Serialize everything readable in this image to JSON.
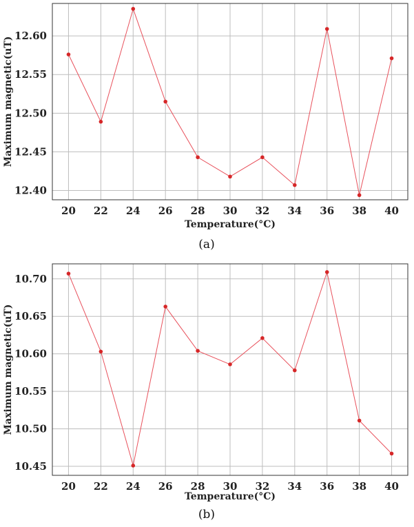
{
  "colors": {
    "line": "#e8505b",
    "marker": "#d62728",
    "grid": "#bdbdbd"
  },
  "chart_data": [
    {
      "type": "line",
      "caption": "(a)",
      "xlabel": "Temperature(°C)",
      "ylabel": "Maximum magnetic(uT)",
      "x": [
        20,
        22,
        24,
        26,
        28,
        30,
        32,
        34,
        36,
        38,
        40
      ],
      "values": [
        12.576,
        12.489,
        12.635,
        12.515,
        12.443,
        12.418,
        12.443,
        12.407,
        12.609,
        12.394,
        12.571
      ],
      "xticks": [
        "20",
        "22",
        "24",
        "26",
        "28",
        "30",
        "32",
        "34",
        "36",
        "38",
        "40"
      ],
      "yticks": [
        "12.40",
        "12.45",
        "12.50",
        "12.55",
        "12.60"
      ],
      "ytick_values": [
        12.4,
        12.45,
        12.5,
        12.55,
        12.6
      ],
      "xlim": [
        19,
        41
      ],
      "ylim": [
        12.388,
        12.642
      ],
      "grid": true
    },
    {
      "type": "line",
      "caption": "(b)",
      "xlabel": "Temperature(°C)",
      "ylabel": "Maximum magnetic(uT)",
      "x": [
        20,
        22,
        24,
        26,
        28,
        30,
        32,
        34,
        36,
        38,
        40
      ],
      "values": [
        10.707,
        10.603,
        10.451,
        10.663,
        10.604,
        10.586,
        10.621,
        10.578,
        10.709,
        10.511,
        10.467
      ],
      "xticks": [
        "20",
        "22",
        "24",
        "26",
        "28",
        "30",
        "32",
        "34",
        "36",
        "38",
        "40"
      ],
      "yticks": [
        "10.45",
        "10.50",
        "10.55",
        "10.60",
        "10.65",
        "10.70"
      ],
      "ytick_values": [
        10.45,
        10.5,
        10.55,
        10.6,
        10.65,
        10.7
      ],
      "xlim": [
        19,
        41
      ],
      "ylim": [
        10.438,
        10.72
      ],
      "grid": true
    }
  ]
}
